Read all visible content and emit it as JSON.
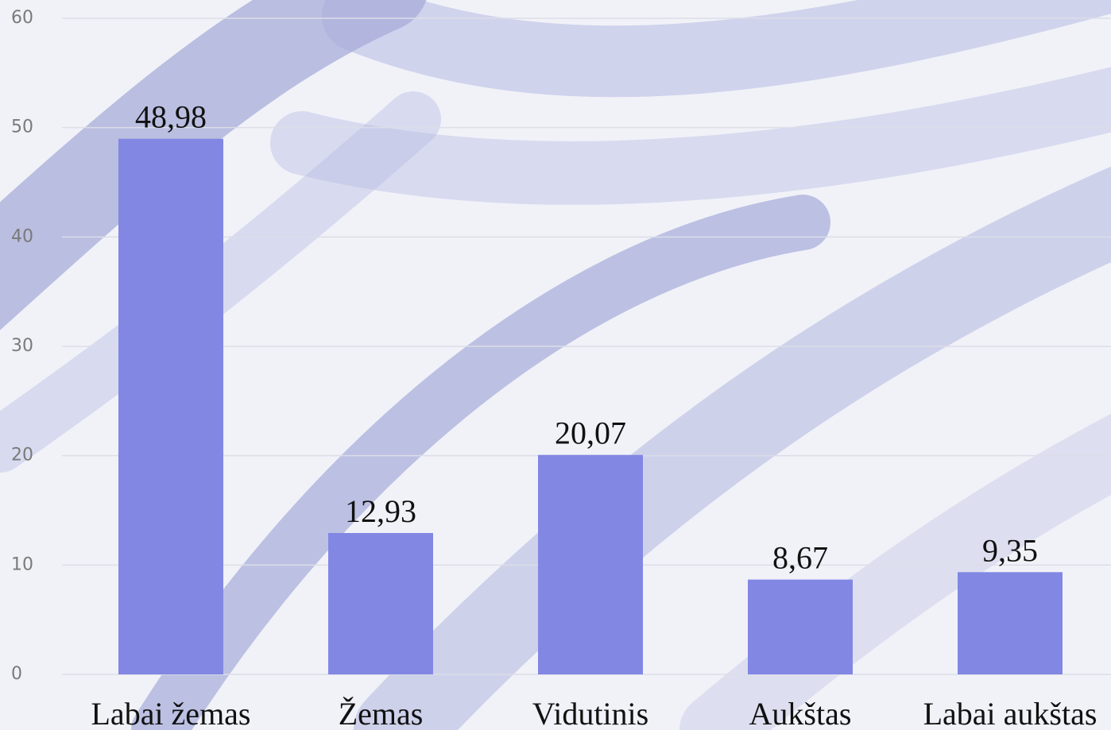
{
  "chart_data": {
    "type": "bar",
    "categories": [
      "Labai žemas",
      "Žemas",
      "Vidutinis",
      "Aukštas",
      "Labai aukštas"
    ],
    "values": [
      48.98,
      12.93,
      20.07,
      8.67,
      9.35
    ],
    "value_labels": [
      "48,98",
      "12,93",
      "20,07",
      "8,67",
      "9,35"
    ],
    "color": "#8187e3",
    "ylim": [
      0,
      60
    ],
    "yticks": [
      0,
      10,
      20,
      30,
      40,
      50,
      60
    ],
    "grid": true
  }
}
